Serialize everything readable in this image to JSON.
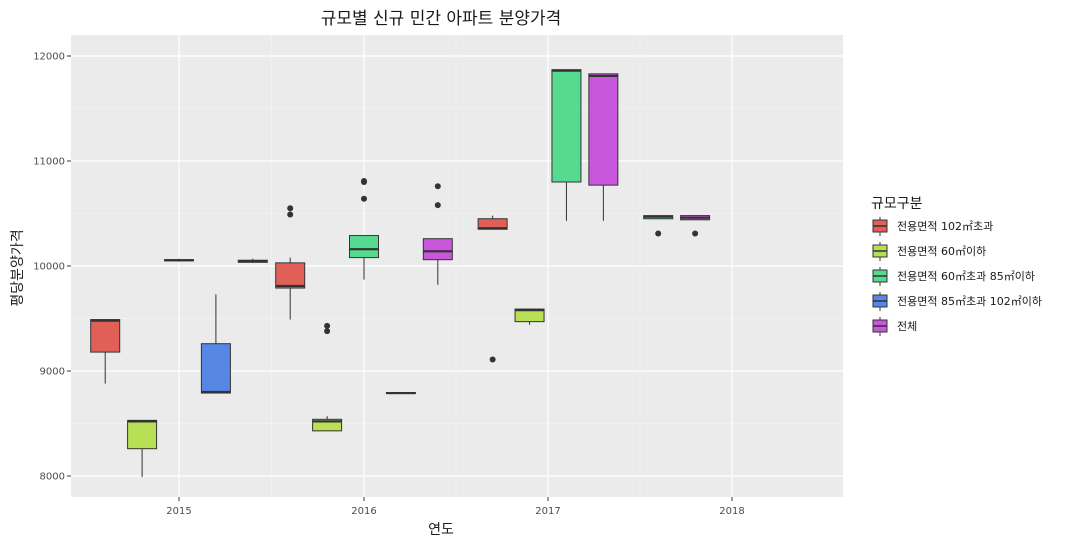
{
  "chart_data": {
    "type": "boxplot",
    "title": "규모별 신규 민간 아파트 분양가격",
    "xlabel": "연도",
    "ylabel": "평당분양가격",
    "categories": [
      "2015",
      "2016",
      "2017",
      "2018"
    ],
    "ylim": [
      7800,
      12200
    ],
    "yticks": [
      8000,
      9000,
      10000,
      11000,
      12000
    ],
    "legend": {
      "title": "규모구분",
      "position": "right",
      "items": [
        {
          "label": "전용면적 102㎡초과",
          "color": "#e06058"
        },
        {
          "label": "전용면적 60㎡이하",
          "color": "#b9df55"
        },
        {
          "label": "전용면적 60㎡초과 85㎡이하",
          "color": "#55da90"
        },
        {
          "label": "전용면적 85㎡초과 102㎡이하",
          "color": "#5687e4"
        },
        {
          "label": "전체",
          "color": "#c957dc"
        }
      ]
    },
    "groups": [
      {
        "year": "2015",
        "boxes": [
          {
            "series": 0,
            "slot": 0,
            "min": 8880,
            "q1": 9180,
            "median": 9480,
            "q3": 9490,
            "max": 9490,
            "outliers": []
          },
          {
            "series": 1,
            "slot": 1,
            "min": 7990,
            "q1": 8260,
            "median": 8520,
            "q3": 8530,
            "max": 8530,
            "outliers": []
          },
          {
            "series": 2,
            "slot": 2,
            "min": 10040,
            "q1": 10050,
            "median": 10055,
            "q3": 10060,
            "max": 10070,
            "outliers": []
          },
          {
            "series": 3,
            "slot": 3,
            "min": 8790,
            "q1": 8790,
            "median": 8800,
            "q3": 9260,
            "max": 9730,
            "outliers": []
          },
          {
            "series": 4,
            "slot": 4,
            "min": 10030,
            "q1": 10035,
            "median": 10045,
            "q3": 10055,
            "max": 10070,
            "outliers": []
          }
        ]
      },
      {
        "year": "2016",
        "boxes": [
          {
            "series": 0,
            "slot": 0,
            "min": 9490,
            "q1": 9790,
            "median": 9810,
            "q3": 10030,
            "max": 10080,
            "outliers": [
              10490,
              10550
            ]
          },
          {
            "series": 1,
            "slot": 1,
            "min": 8430,
            "q1": 8430,
            "median": 8520,
            "q3": 8540,
            "max": 8570,
            "outliers": [
              9380,
              9430
            ]
          },
          {
            "series": 2,
            "slot": 2,
            "min": 9870,
            "q1": 10080,
            "median": 10160,
            "q3": 10290,
            "max": 10290,
            "outliers": [
              10640,
              10800,
              10810
            ]
          },
          {
            "series": 3,
            "slot": 3,
            "min": 8780,
            "q1": 8785,
            "median": 8790,
            "q3": 8795,
            "max": 8800,
            "outliers": []
          },
          {
            "series": 4,
            "slot": 4,
            "min": 9820,
            "q1": 10060,
            "median": 10140,
            "q3": 10260,
            "max": 10260,
            "outliers": [
              10580,
              10760
            ]
          }
        ]
      },
      {
        "year": "2017",
        "boxes": [
          {
            "series": 0,
            "slot": 0.5,
            "min": 10350,
            "q1": 10350,
            "median": 10360,
            "q3": 10450,
            "max": 10480,
            "outliers": [
              9110
            ]
          },
          {
            "series": 1,
            "slot": 1.5,
            "min": 9440,
            "q1": 9470,
            "median": 9580,
            "q3": 9590,
            "max": 9590,
            "outliers": []
          },
          {
            "series": 2,
            "slot": 2.5,
            "min": 10430,
            "q1": 10800,
            "median": 11860,
            "q3": 11870,
            "max": 11870,
            "outliers": []
          },
          {
            "series": 4,
            "slot": 3.5,
            "min": 10430,
            "q1": 10770,
            "median": 11810,
            "q3": 11830,
            "max": 11830,
            "outliers": []
          }
        ]
      },
      {
        "year": "2018",
        "boxes": [
          {
            "series": 2,
            "slot": 0,
            "min": 10450,
            "q1": 10450,
            "median": 10470,
            "q3": 10480,
            "max": 10480,
            "outliers": [
              10310
            ]
          },
          {
            "series": 4,
            "slot": 1,
            "min": 10440,
            "q1": 10440,
            "median": 10460,
            "q3": 10480,
            "max": 10480,
            "outliers": [
              10310
            ]
          }
        ]
      }
    ]
  }
}
